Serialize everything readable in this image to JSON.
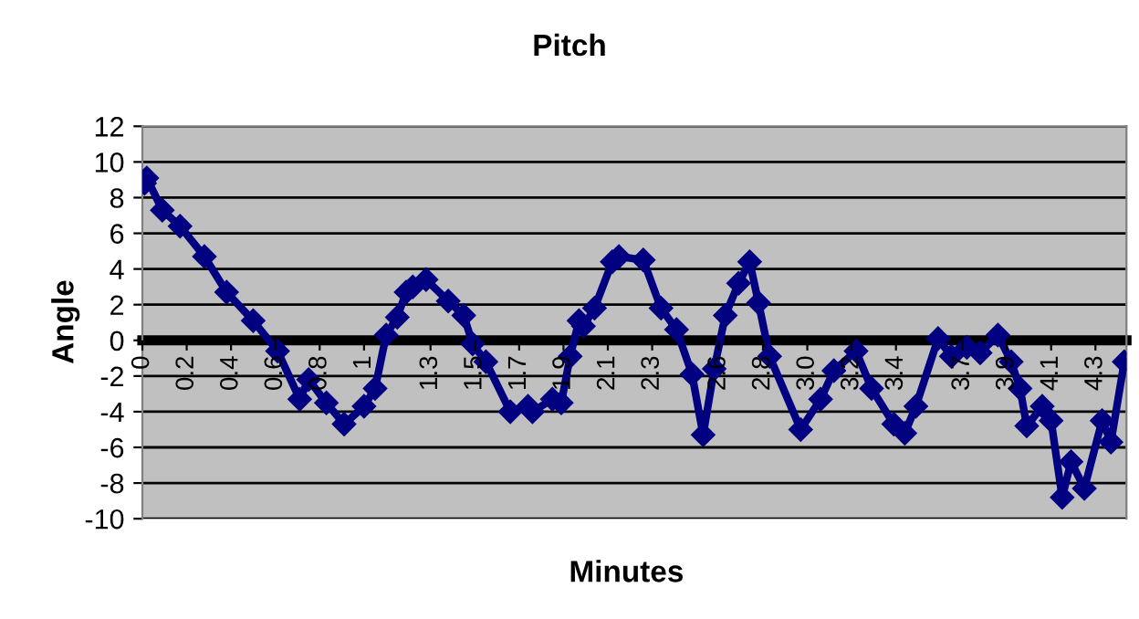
{
  "chart_data": {
    "type": "line",
    "title": "Pitch",
    "xlabel": "Minutes",
    "ylabel": "Angle",
    "x": [
      0.01,
      0.02,
      0.09,
      0.17,
      0.28,
      0.38,
      0.5,
      0.61,
      0.71,
      0.75,
      0.83,
      0.91,
      1.0,
      1.05,
      1.1,
      1.15,
      1.19,
      1.22,
      1.28,
      1.38,
      1.45,
      1.49,
      1.55,
      1.66,
      1.74,
      1.76,
      1.85,
      1.89,
      1.93,
      1.97,
      1.99,
      2.04,
      2.12,
      2.15,
      2.26,
      2.34,
      2.41,
      2.48,
      2.53,
      2.58,
      2.63,
      2.69,
      2.74,
      2.78,
      2.83,
      2.97,
      3.06,
      3.12,
      3.22,
      3.29,
      3.39,
      3.44,
      3.49,
      3.59,
      3.65,
      3.72,
      3.78,
      3.86,
      3.92,
      3.96,
      3.99,
      4.06,
      4.1,
      4.15,
      4.19,
      4.25,
      4.33,
      4.37,
      4.43
    ],
    "series": [
      {
        "color": "#000080",
        "values": [
          8.8,
          9.1,
          7.3,
          6.4,
          4.7,
          2.7,
          1.1,
          -0.6,
          -3.3,
          -2.2,
          -3.5,
          -4.7,
          -3.7,
          -2.7,
          0.3,
          1.3,
          2.7,
          3.0,
          3.4,
          2.2,
          1.4,
          -0.2,
          -1.2,
          -4.0,
          -3.7,
          -4.0,
          -3.3,
          -3.5,
          -0.9,
          1.1,
          0.8,
          1.8,
          4.4,
          4.7,
          4.5,
          1.8,
          0.6,
          -1.9,
          -5.3,
          -1.6,
          1.4,
          3.2,
          4.4,
          2.1,
          -0.9,
          -5.0,
          -3.3,
          -1.7,
          -0.6,
          -2.7,
          -4.7,
          -5.2,
          -3.7,
          0.1,
          -0.9,
          -0.4,
          -0.7,
          0.3,
          -1.2,
          -2.7,
          -4.8,
          -3.7,
          -4.5,
          -8.8,
          -6.8,
          -8.3,
          -4.5,
          -5.7,
          -1.2
        ]
      }
    ],
    "xlim": [
      0,
      4.44
    ],
    "xticks": [
      0,
      0.2,
      0.4,
      0.6,
      0.8,
      1,
      1.3,
      1.5,
      1.7,
      1.9,
      2.1,
      2.3,
      2.6,
      2.8,
      {
        "value": 3,
        "label": "3.0"
      },
      3.2,
      3.4,
      3.7,
      3.9,
      4.1,
      4.3
    ],
    "ylim": [
      -10,
      12
    ],
    "yticks": [
      -10,
      -8,
      -6,
      -4,
      -2,
      0,
      2,
      4,
      6,
      8,
      10,
      12
    ],
    "grid": "y",
    "marker": "diamond",
    "line_style": "solid",
    "legend": false
  }
}
